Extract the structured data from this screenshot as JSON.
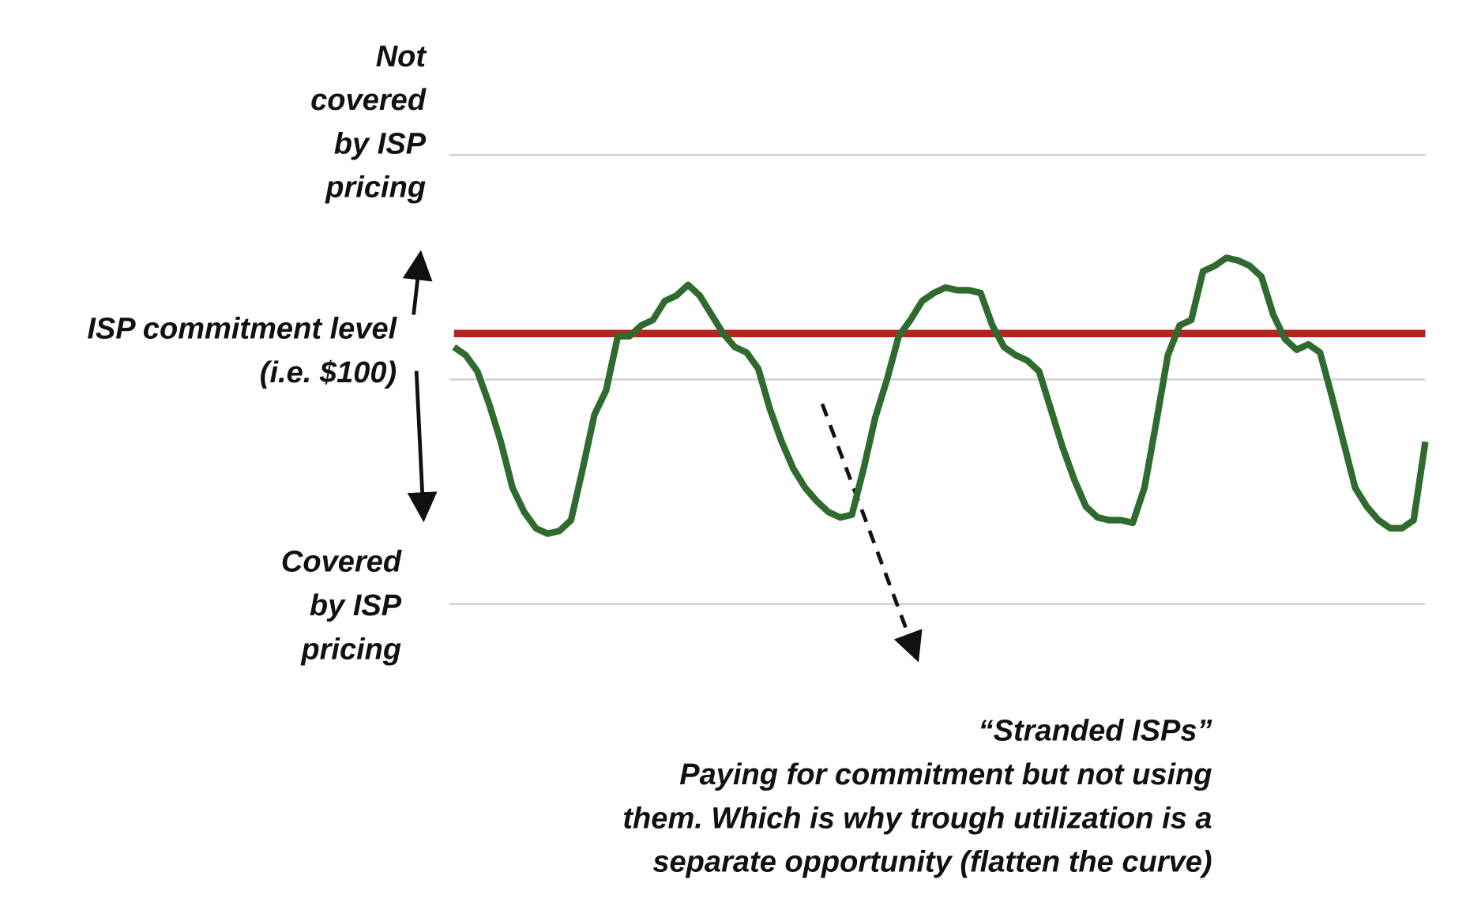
{
  "chart_data": {
    "type": "line",
    "ylim": [
      0,
      166
    ],
    "yticks": [
      0,
      83,
      166
    ],
    "grid": true,
    "series": [
      {
        "color": "#2f6b2f",
        "values": [
          95,
          92,
          86,
          74,
          60,
          43,
          34,
          28,
          26,
          27,
          31,
          50,
          70,
          79,
          99,
          99,
          103,
          105,
          112,
          114,
          118,
          114,
          107,
          100,
          95,
          93,
          87,
          72,
          60,
          50,
          43,
          38,
          34,
          32,
          33,
          50,
          69,
          83,
          99,
          105,
          112,
          115,
          117,
          116,
          116,
          115,
          103,
          95,
          92,
          90,
          86,
          72,
          58,
          46,
          36,
          32,
          31,
          31,
          30,
          43,
          67,
          92,
          103,
          105,
          123,
          125,
          128,
          127,
          125,
          121,
          107,
          98,
          94,
          96,
          93,
          77,
          60,
          43,
          36,
          31,
          28,
          28,
          31,
          60
        ]
      }
    ],
    "reference_line": {
      "value": 100,
      "color": "#b3261e"
    },
    "annotations": {
      "not_covered": [
        "Not",
        "covered",
        "by ISP",
        "pricing"
      ],
      "commitment": [
        "ISP commitment level",
        "(i.e. $100)"
      ],
      "covered": [
        "Covered",
        "by ISP",
        "pricing"
      ],
      "stranded": [
        "“Stranded ISPs”",
        "Paying for commitment but not using",
        "them. Which is why trough utilization is a",
        "separate opportunity (flatten the curve)"
      ]
    }
  }
}
